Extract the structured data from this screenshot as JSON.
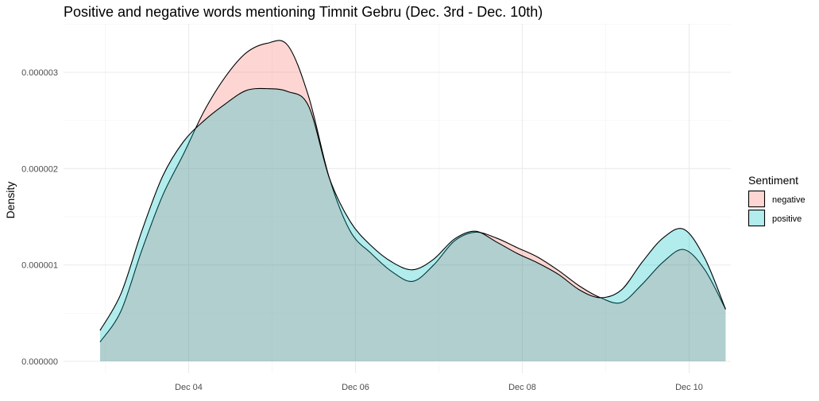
{
  "chart_data": {
    "type": "area",
    "title": "Positive and negative words mentioning Timnit Gebru (Dec. 3rd - Dec. 10th)",
    "xlabel": "",
    "ylabel": "Density",
    "xlim": [
      "2020-12-02 12:00",
      "2020-12-10 12:00"
    ],
    "ylim": [
      0,
      3.3e-06
    ],
    "x_ticks": [
      {
        "value": "2020-12-04",
        "label": "Dec 04"
      },
      {
        "value": "2020-12-06",
        "label": "Dec 06"
      },
      {
        "value": "2020-12-08",
        "label": "Dec 08"
      },
      {
        "value": "2020-12-10",
        "label": "Dec 10"
      }
    ],
    "y_ticks": [
      {
        "value": 0.0,
        "label": "0.000000"
      },
      {
        "value": 1e-06,
        "label": "0.000001"
      },
      {
        "value": 2e-06,
        "label": "0.000002"
      },
      {
        "value": 3e-06,
        "label": "0.000003"
      }
    ],
    "grid": true,
    "legend": {
      "title": "Sentiment",
      "position": "right"
    },
    "series": [
      {
        "name": "negative",
        "color": "#F8766D",
        "x": [
          "2020-12-02 22:30",
          "2020-12-03 04:30",
          "2020-12-03 10:30",
          "2020-12-03 16:30",
          "2020-12-03 22:30",
          "2020-12-04 04:30",
          "2020-12-04 10:30",
          "2020-12-04 16:30",
          "2020-12-04 22:30",
          "2020-12-05 04:30",
          "2020-12-05 10:30",
          "2020-12-05 16:30",
          "2020-12-05 22:30",
          "2020-12-06 04:30",
          "2020-12-06 10:30",
          "2020-12-06 16:30",
          "2020-12-06 22:30",
          "2020-12-07 04:30",
          "2020-12-07 10:30",
          "2020-12-07 16:30",
          "2020-12-07 22:30",
          "2020-12-08 04:30",
          "2020-12-08 10:30",
          "2020-12-08 16:30",
          "2020-12-08 22:30",
          "2020-12-09 04:30",
          "2020-12-09 10:30",
          "2020-12-09 16:30",
          "2020-12-09 22:30",
          "2020-12-10 04:30",
          "2020-12-10 10:30"
        ],
        "values": [
          2e-07,
          5.2e-07,
          1.15e-06,
          1.72e-06,
          2.15e-06,
          2.6e-06,
          2.95e-06,
          3.2e-06,
          3.3e-06,
          3.28e-06,
          2.75e-06,
          1.9e-06,
          1.35e-06,
          1.12e-06,
          9.3e-07,
          8.3e-07,
          1e-06,
          1.25e-06,
          1.34e-06,
          1.28e-06,
          1.18e-06,
          1.08e-06,
          9.4e-07,
          7.8e-07,
          6.6e-07,
          6.1e-07,
          8e-07,
          1.03e-06,
          1.16e-06,
          9.5e-07,
          5.4e-07
        ]
      },
      {
        "name": "positive",
        "color": "#00BFC4",
        "x": [
          "2020-12-02 22:30",
          "2020-12-03 04:30",
          "2020-12-03 10:30",
          "2020-12-03 16:30",
          "2020-12-03 22:30",
          "2020-12-04 04:30",
          "2020-12-04 10:30",
          "2020-12-04 16:30",
          "2020-12-04 22:30",
          "2020-12-05 04:30",
          "2020-12-05 10:30",
          "2020-12-05 16:30",
          "2020-12-05 22:30",
          "2020-12-06 04:30",
          "2020-12-06 10:30",
          "2020-12-06 16:30",
          "2020-12-06 22:30",
          "2020-12-07 04:30",
          "2020-12-07 10:30",
          "2020-12-07 16:30",
          "2020-12-07 22:30",
          "2020-12-08 04:30",
          "2020-12-08 10:30",
          "2020-12-08 16:30",
          "2020-12-08 22:30",
          "2020-12-09 04:30",
          "2020-12-09 10:30",
          "2020-12-09 16:30",
          "2020-12-09 22:30",
          "2020-12-10 04:30",
          "2020-12-10 10:30"
        ],
        "values": [
          3.2e-07,
          7e-07,
          1.35e-06,
          1.92e-06,
          2.28e-06,
          2.5e-06,
          2.67e-06,
          2.81e-06,
          2.83e-06,
          2.8e-06,
          2.65e-06,
          1.9e-06,
          1.45e-06,
          1.2e-06,
          1.03e-06,
          9.5e-07,
          1.06e-06,
          1.27e-06,
          1.35e-06,
          1.24e-06,
          1.12e-06,
          1.02e-06,
          9e-07,
          7.4e-07,
          6.6e-07,
          7.4e-07,
          1.03e-06,
          1.28e-06,
          1.37e-06,
          1.07e-06,
          5.4e-07
        ]
      }
    ]
  }
}
